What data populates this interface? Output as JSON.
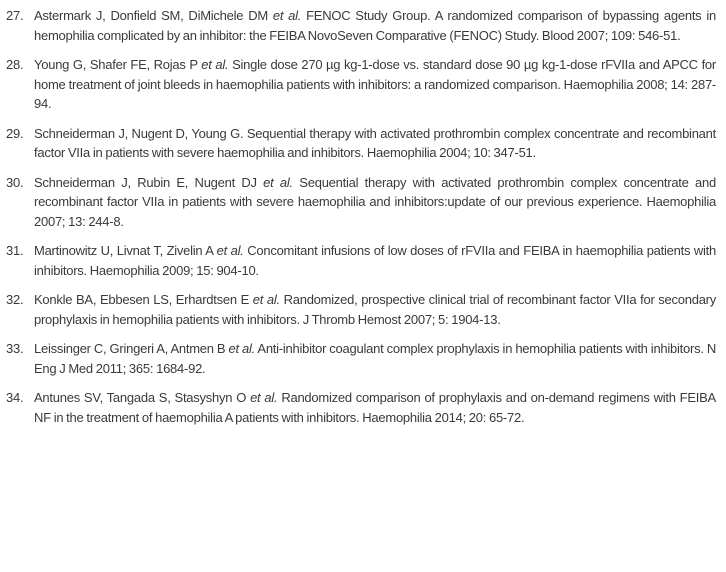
{
  "references": [
    {
      "number": "27.",
      "authors": "Astermark J, Donfield SM, DiMichele DM",
      "etal": "et al.",
      "rest": " FENOC Study Group. A randomized comparison of bypassing agents in hemophilia complicated by an inhibitor: the FEIBA NovoSeven Comparative (FENOC) Study. Blood 2007; 109: 546-51."
    },
    {
      "number": "28.",
      "authors": "Young G, Shafer FE, Rojas P",
      "etal": "et al.",
      "rest": " Single dose 270 µg kg-1-dose vs. standard dose 90 µg kg-1-dose rFVIIa and APCC for home treatment of joint bleeds in haemophilia patients with inhibitors: a randomized comparison. Haemophilia 2008; 14: 287-94."
    },
    {
      "number": "29.",
      "authors": "Schneiderman J, Nugent D, Young G. Sequential therapy with activated prothrombin complex concentrate and recombinant factor VIIa in patients with severe haemophilia and inhibitors. Haemophilia 2004; 10: 347-51.",
      "etal": "",
      "rest": ""
    },
    {
      "number": "30.",
      "authors": " Schneiderman J, Rubin E, Nugent DJ",
      "etal": "et al.",
      "rest": " Sequential therapy with activated prothrombin complex concentrate and recombinant factor VIIa in patients with severe haemophilia and inhibitors:update of our previous experience. Haemophilia 2007; 13: 244-8."
    },
    {
      "number": "31.",
      "authors": "Martinowitz U, Livnat T, Zivelin A",
      "etal": "et al.",
      "rest": " Concomitant infusions of low doses of rFVIIa and FEIBA in haemophilia patients with inhibitors. Haemophilia 2009; 15: 904-10."
    },
    {
      "number": "32.",
      "authors": "Konkle BA, Ebbesen LS, Erhardtsen E",
      "etal": "et al.",
      "rest": " Randomized, prospective clinical trial of recombinant factor VIIa for secondary prophylaxis in hemophilia patients with inhibitors. J Thromb Hemost 2007; 5: 1904-13."
    },
    {
      "number": "33.",
      "authors": "Leissinger C, Gringeri A, Antmen B",
      "etal": "et al.",
      "rest": " Anti-inhibitor coagulant complex prophylaxis in hemophilia patients with inhibitors. N Eng J Med 2011; 365: 1684-92."
    },
    {
      "number": "34.",
      "authors": "Antunes SV, Tangada S, Stasyshyn O",
      "etal": "et al.",
      "rest": " Randomized comparison of prophylaxis and on-demand regimens with FEIBA NF in the treatment of haemophilia A patients with inhibitors. Haemophilia 2014; 20: 65-72."
    }
  ]
}
